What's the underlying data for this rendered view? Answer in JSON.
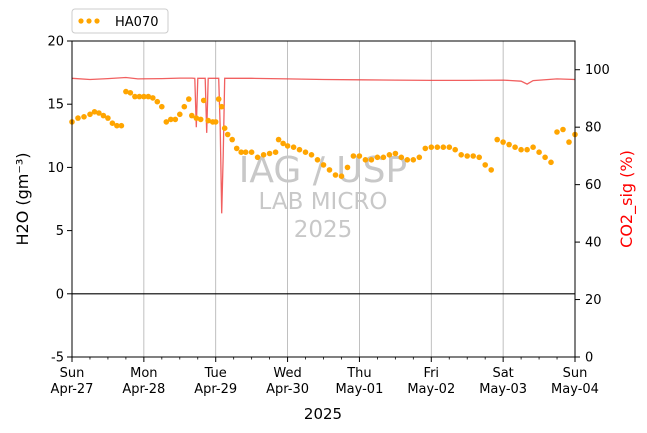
{
  "chart_data": {
    "type": "line",
    "title": "",
    "xlabel": "2025",
    "ylabel_left": "H2O (gm⁻³)",
    "ylabel_right": "CO2_sig (%)",
    "xlim": [
      "2025-04-27 00:00",
      "2025-05-04 00:00"
    ],
    "ylim_left": [
      -5,
      20
    ],
    "ylim_right": [
      0,
      110
    ],
    "yticks_left": [
      -5,
      0,
      5,
      10,
      15,
      20
    ],
    "yticks_right": [
      0,
      20,
      40,
      60,
      80,
      100
    ],
    "xticks": [
      {
        "day": "Sun",
        "date": "Apr-27"
      },
      {
        "day": "Mon",
        "date": "Apr-28"
      },
      {
        "day": "Tue",
        "date": "Apr-29"
      },
      {
        "day": "Wed",
        "date": "Apr-30"
      },
      {
        "day": "Thu",
        "date": "May-01"
      },
      {
        "day": "Fri",
        "date": "May-02"
      },
      {
        "day": "Sat",
        "date": "May-03"
      },
      {
        "day": "Sun",
        "date": "May-04"
      }
    ],
    "zero_line": 0,
    "grid": "vertical",
    "legend": {
      "placement": "top-left",
      "entries": [
        "HA070"
      ]
    },
    "watermark": [
      "IAG / USP",
      "LAB MICRO",
      "2025"
    ],
    "colors": {
      "h2o": "#ffa500",
      "co2": "#ee4444",
      "co2_label": "#ff0000"
    },
    "series": [
      {
        "name": "HA070",
        "axis": "left",
        "style": "dots",
        "points": [
          [
            "2025-04-27 00:00",
            13.6
          ],
          [
            "2025-04-27 02:00",
            13.9
          ],
          [
            "2025-04-27 04:00",
            14.0
          ],
          [
            "2025-04-27 06:00",
            14.2
          ],
          [
            "2025-04-27 07:30",
            14.4
          ],
          [
            "2025-04-27 09:00",
            14.3
          ],
          [
            "2025-04-27 10:30",
            14.1
          ],
          [
            "2025-04-27 12:00",
            13.9
          ],
          [
            "2025-04-27 13:30",
            13.5
          ],
          [
            "2025-04-27 15:00",
            13.3
          ],
          [
            "2025-04-27 16:30",
            13.3
          ],
          [
            "2025-04-27 18:00",
            16.0
          ],
          [
            "2025-04-27 19:30",
            15.9
          ],
          [
            "2025-04-27 21:00",
            15.6
          ],
          [
            "2025-04-27 22:30",
            15.6
          ],
          [
            "2025-04-28 00:00",
            15.6
          ],
          [
            "2025-04-28 01:30",
            15.6
          ],
          [
            "2025-04-28 03:00",
            15.5
          ],
          [
            "2025-04-28 04:30",
            15.2
          ],
          [
            "2025-04-28 06:00",
            14.8
          ],
          [
            "2025-04-28 07:30",
            13.6
          ],
          [
            "2025-04-28 09:00",
            13.8
          ],
          [
            "2025-04-28 10:30",
            13.8
          ],
          [
            "2025-04-28 12:00",
            14.2
          ],
          [
            "2025-04-28 13:30",
            14.8
          ],
          [
            "2025-04-28 15:00",
            15.4
          ],
          [
            "2025-04-28 16:00",
            14.1
          ],
          [
            "2025-04-28 17:30",
            13.9
          ],
          [
            "2025-04-28 19:00",
            13.8
          ],
          [
            "2025-04-28 20:00",
            15.3
          ],
          [
            "2025-04-28 21:30",
            13.7
          ],
          [
            "2025-04-28 23:00",
            13.6
          ],
          [
            "2025-04-29 00:00",
            13.6
          ],
          [
            "2025-04-29 01:00",
            15.4
          ],
          [
            "2025-04-29 02:00",
            14.8
          ],
          [
            "2025-04-29 03:00",
            13.1
          ],
          [
            "2025-04-29 04:00",
            12.6
          ],
          [
            "2025-04-29 05:30",
            12.2
          ],
          [
            "2025-04-29 07:00",
            11.5
          ],
          [
            "2025-04-29 08:30",
            11.2
          ],
          [
            "2025-04-29 10:00",
            11.2
          ],
          [
            "2025-04-29 12:00",
            11.2
          ],
          [
            "2025-04-29 14:00",
            10.8
          ],
          [
            "2025-04-29 16:00",
            11.0
          ],
          [
            "2025-04-29 18:00",
            11.1
          ],
          [
            "2025-04-29 20:00",
            11.2
          ],
          [
            "2025-04-29 21:00",
            12.2
          ],
          [
            "2025-04-29 22:30",
            11.9
          ],
          [
            "2025-04-30 00:00",
            11.7
          ],
          [
            "2025-04-30 02:00",
            11.6
          ],
          [
            "2025-04-30 04:00",
            11.4
          ],
          [
            "2025-04-30 06:00",
            11.2
          ],
          [
            "2025-04-30 08:00",
            11.0
          ],
          [
            "2025-04-30 10:00",
            10.6
          ],
          [
            "2025-04-30 12:00",
            10.2
          ],
          [
            "2025-04-30 14:00",
            9.8
          ],
          [
            "2025-04-30 16:00",
            9.4
          ],
          [
            "2025-04-30 18:00",
            9.3
          ],
          [
            "2025-04-30 20:00",
            10.0
          ],
          [
            "2025-04-30 22:00",
            10.9
          ],
          [
            "2025-05-01 00:00",
            10.9
          ],
          [
            "2025-05-01 02:00",
            10.6
          ],
          [
            "2025-05-01 04:00",
            10.6
          ],
          [
            "2025-05-01 06:00",
            10.8
          ],
          [
            "2025-05-01 08:00",
            10.8
          ],
          [
            "2025-05-01 10:00",
            11.0
          ],
          [
            "2025-05-01 12:00",
            11.1
          ],
          [
            "2025-05-01 14:00",
            10.8
          ],
          [
            "2025-05-01 16:00",
            10.6
          ],
          [
            "2025-05-01 18:00",
            10.6
          ],
          [
            "2025-05-01 20:00",
            10.8
          ],
          [
            "2025-05-01 22:00",
            11.5
          ],
          [
            "2025-05-02 00:00",
            11.6
          ],
          [
            "2025-05-02 02:00",
            11.6
          ],
          [
            "2025-05-02 04:00",
            11.6
          ],
          [
            "2025-05-02 06:00",
            11.6
          ],
          [
            "2025-05-02 08:00",
            11.4
          ],
          [
            "2025-05-02 10:00",
            11.0
          ],
          [
            "2025-05-02 12:00",
            10.9
          ],
          [
            "2025-05-02 14:00",
            10.9
          ],
          [
            "2025-05-02 16:00",
            10.8
          ],
          [
            "2025-05-02 18:00",
            10.2
          ],
          [
            "2025-05-02 20:00",
            9.8
          ],
          [
            "2025-05-02 22:00",
            12.2
          ],
          [
            "2025-05-03 00:00",
            12.0
          ],
          [
            "2025-05-03 02:00",
            11.8
          ],
          [
            "2025-05-03 04:00",
            11.6
          ],
          [
            "2025-05-03 06:00",
            11.4
          ],
          [
            "2025-05-03 08:00",
            11.4
          ],
          [
            "2025-05-03 10:00",
            11.6
          ],
          [
            "2025-05-03 12:00",
            11.2
          ],
          [
            "2025-05-03 14:00",
            10.8
          ],
          [
            "2025-05-03 16:00",
            10.4
          ],
          [
            "2025-05-03 18:00",
            12.8
          ],
          [
            "2025-05-03 20:00",
            13.0
          ],
          [
            "2025-05-03 22:00",
            12.0
          ],
          [
            "2025-05-04 00:00",
            12.6
          ]
        ]
      },
      {
        "name": "CO2_sig",
        "axis": "right",
        "style": "line",
        "points": [
          [
            "2025-04-27 00:00",
            97.0
          ],
          [
            "2025-04-27 06:00",
            96.6
          ],
          [
            "2025-04-27 12:00",
            96.9
          ],
          [
            "2025-04-27 18:00",
            97.3
          ],
          [
            "2025-04-27 22:00",
            96.8
          ],
          [
            "2025-04-28 06:00",
            96.9
          ],
          [
            "2025-04-28 12:00",
            97.1
          ],
          [
            "2025-04-28 16:00",
            97.1
          ],
          [
            "2025-04-28 17:00",
            97.0
          ],
          [
            "2025-04-28 17:30",
            80.0
          ],
          [
            "2025-04-28 18:00",
            97.0
          ],
          [
            "2025-04-28 20:30",
            97.0
          ],
          [
            "2025-04-28 21:00",
            78.0
          ],
          [
            "2025-04-28 21:30",
            97.0
          ],
          [
            "2025-04-29 01:00",
            97.0
          ],
          [
            "2025-04-29 01:30",
            80.0
          ],
          [
            "2025-04-29 02:00",
            50.0
          ],
          [
            "2025-04-29 02:30",
            70.0
          ],
          [
            "2025-04-29 03:00",
            97.0
          ],
          [
            "2025-04-29 12:00",
            97.0
          ],
          [
            "2025-04-30 00:00",
            96.8
          ],
          [
            "2025-04-30 12:00",
            96.6
          ],
          [
            "2025-05-01 00:00",
            96.5
          ],
          [
            "2025-05-01 12:00",
            96.4
          ],
          [
            "2025-05-02 00:00",
            96.3
          ],
          [
            "2025-05-02 12:00",
            96.3
          ],
          [
            "2025-05-03 00:00",
            96.4
          ],
          [
            "2025-05-03 06:00",
            96.0
          ],
          [
            "2025-05-03 08:00",
            95.0
          ],
          [
            "2025-05-03 10:00",
            96.2
          ],
          [
            "2025-05-03 18:00",
            96.8
          ],
          [
            "2025-05-04 00:00",
            96.6
          ]
        ]
      }
    ]
  }
}
